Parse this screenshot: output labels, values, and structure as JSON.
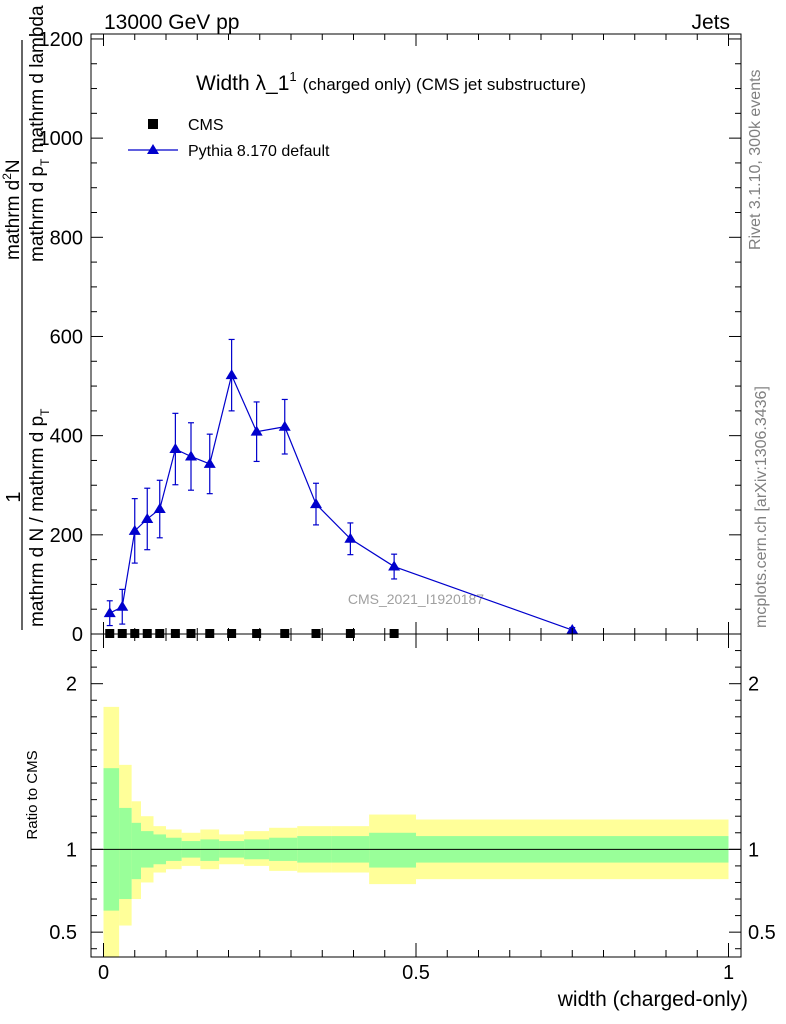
{
  "header": {
    "energy_label": "13000 GeV pp",
    "process_label": "Jets"
  },
  "side_labels": {
    "rivet": "Rivet 3.1.10,  300k events",
    "mcplots": "mcplots.cern.ch [arXiv:1306.3436]"
  },
  "watermark": "CMS_2021_I1920187",
  "colors": {
    "mc_line": "#0000cc",
    "data_marker": "#000000",
    "band_inner": "#99ff99",
    "band_outer": "#ffff99"
  },
  "chart_data": [
    {
      "type": "scatter",
      "title": "Width λ_1",
      "title_sup": "1",
      "subtitle": "(charged only) (CMS jet substructure)",
      "ylabel_numerator": "mathrm dN",
      "ylabel_denominator": "mathrm d p_T mathrm d lambda",
      "ylabel_prefix": "1",
      "ylabel_norm": "mathrm d N / mathrm d p_T",
      "ylabel_numerator_parts": [
        "mathrm d",
        "2",
        "N"
      ],
      "ylabel_denominator_parts": [
        "mathrm d p",
        "T",
        " mathrm d lambda"
      ],
      "ylabel_norm_parts": [
        "mathrm d N / mathrm d p",
        "T"
      ],
      "xlim": [
        -0.02,
        1.02
      ],
      "ylim": [
        0,
        1210
      ],
      "yticks": [
        0,
        200,
        400,
        600,
        800,
        1000,
        1200
      ],
      "ytick_labels": [
        "0",
        "200",
        "400",
        "600",
        "800",
        "1000",
        "1200"
      ],
      "legend_placement": "top-left",
      "series": [
        {
          "name": "CMS",
          "marker": "square",
          "x": [
            0.01,
            0.03,
            0.05,
            0.07,
            0.09,
            0.115,
            0.14,
            0.17,
            0.205,
            0.245,
            0.29,
            0.34,
            0.395,
            0.465
          ],
          "y": [
            1,
            1,
            1,
            1,
            1,
            1,
            1,
            1,
            1,
            1,
            1,
            1,
            1,
            1
          ]
        },
        {
          "name": "Pythia 8.170 default",
          "marker": "triangle",
          "x": [
            0.01,
            0.03,
            0.05,
            0.07,
            0.09,
            0.115,
            0.14,
            0.17,
            0.205,
            0.245,
            0.29,
            0.34,
            0.395,
            0.465,
            0.75
          ],
          "y": [
            42,
            55,
            208,
            232,
            252,
            373,
            358,
            343,
            522,
            408,
            418,
            262,
            192,
            136,
            8
          ],
          "err": [
            25,
            35,
            65,
            62,
            58,
            72,
            68,
            60,
            72,
            60,
            55,
            42,
            32,
            25,
            5
          ]
        }
      ]
    },
    {
      "type": "area",
      "ylabel": "Ratio to CMS",
      "xlabel": "width (charged-only)",
      "xlim": [
        -0.02,
        1.02
      ],
      "ylim": [
        0.35,
        2.3
      ],
      "yticks": [
        0.5,
        1,
        2
      ],
      "ytick_labels": [
        "0.5",
        "1",
        "2"
      ],
      "xticks": [
        0,
        0.5,
        1
      ],
      "xtick_labels": [
        "0",
        "0.5",
        "1"
      ],
      "reference_line": 1,
      "bins": [
        {
          "lo": 0.0,
          "hi": 0.025,
          "inner": [
            0.63,
            1.49
          ],
          "outer": [
            0.3,
            1.86
          ]
        },
        {
          "lo": 0.025,
          "hi": 0.045,
          "inner": [
            0.7,
            1.25
          ],
          "outer": [
            0.54,
            1.51
          ]
        },
        {
          "lo": 0.045,
          "hi": 0.06,
          "inner": [
            0.82,
            1.16
          ],
          "outer": [
            0.7,
            1.29
          ]
        },
        {
          "lo": 0.06,
          "hi": 0.08,
          "inner": [
            0.89,
            1.11
          ],
          "outer": [
            0.8,
            1.2
          ]
        },
        {
          "lo": 0.08,
          "hi": 0.1,
          "inner": [
            0.91,
            1.09
          ],
          "outer": [
            0.86,
            1.14
          ]
        },
        {
          "lo": 0.1,
          "hi": 0.125,
          "inner": [
            0.93,
            1.07
          ],
          "outer": [
            0.88,
            1.12
          ]
        },
        {
          "lo": 0.125,
          "hi": 0.155,
          "inner": [
            0.95,
            1.05
          ],
          "outer": [
            0.9,
            1.1
          ]
        },
        {
          "lo": 0.155,
          "hi": 0.185,
          "inner": [
            0.93,
            1.06
          ],
          "outer": [
            0.88,
            1.12
          ]
        },
        {
          "lo": 0.185,
          "hi": 0.225,
          "inner": [
            0.95,
            1.05
          ],
          "outer": [
            0.91,
            1.09
          ]
        },
        {
          "lo": 0.225,
          "hi": 0.265,
          "inner": [
            0.94,
            1.06
          ],
          "outer": [
            0.9,
            1.11
          ]
        },
        {
          "lo": 0.265,
          "hi": 0.31,
          "inner": [
            0.93,
            1.07
          ],
          "outer": [
            0.87,
            1.13
          ]
        },
        {
          "lo": 0.31,
          "hi": 0.365,
          "inner": [
            0.92,
            1.08
          ],
          "outer": [
            0.86,
            1.14
          ]
        },
        {
          "lo": 0.365,
          "hi": 0.425,
          "inner": [
            0.92,
            1.08
          ],
          "outer": [
            0.86,
            1.14
          ]
        },
        {
          "lo": 0.425,
          "hi": 0.5,
          "inner": [
            0.89,
            1.1
          ],
          "outer": [
            0.79,
            1.21
          ]
        },
        {
          "lo": 0.5,
          "hi": 1.0,
          "inner": [
            0.92,
            1.08
          ],
          "outer": [
            0.82,
            1.18
          ]
        }
      ]
    }
  ]
}
